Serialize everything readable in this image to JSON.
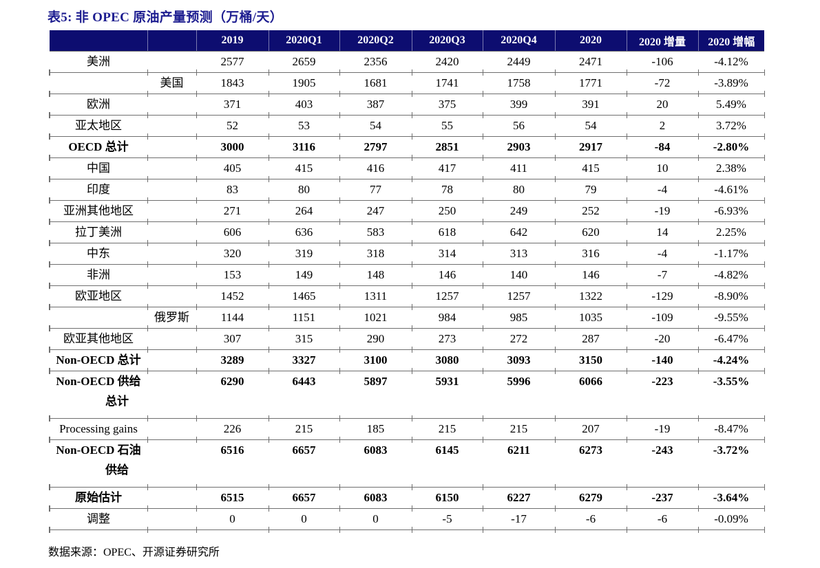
{
  "title": "表5: 非 OPEC 原油产量预测（万桶/天）",
  "source": "数据来源：OPEC、开源证券研究所",
  "colors": {
    "header_bg": "#0d0d70",
    "header_text": "#ffffff",
    "title_text": "#1d1d90",
    "line": "#6e6e6e",
    "body_text": "#000000"
  },
  "table": {
    "columns": [
      "2019",
      "2020Q1",
      "2020Q2",
      "2020Q3",
      "2020Q4",
      "2020",
      "2020 增量",
      "2020 增幅"
    ],
    "rows": [
      {
        "label": "美洲",
        "sub": "",
        "bold": false,
        "values": [
          "2577",
          "2659",
          "2356",
          "2420",
          "2449",
          "2471",
          "-106",
          "-4.12%"
        ]
      },
      {
        "label": "",
        "sub": "美国",
        "bold": false,
        "values": [
          "1843",
          "1905",
          "1681",
          "1741",
          "1758",
          "1771",
          "-72",
          "-3.89%"
        ]
      },
      {
        "label": "欧洲",
        "sub": "",
        "bold": false,
        "values": [
          "371",
          "403",
          "387",
          "375",
          "399",
          "391",
          "20",
          "5.49%"
        ]
      },
      {
        "label": "亚太地区",
        "sub": "",
        "bold": false,
        "values": [
          "52",
          "53",
          "54",
          "55",
          "56",
          "54",
          "2",
          "3.72%"
        ]
      },
      {
        "label": "OECD 总计",
        "sub": "",
        "bold": true,
        "values": [
          "3000",
          "3116",
          "2797",
          "2851",
          "2903",
          "2917",
          "-84",
          "-2.80%"
        ]
      },
      {
        "label": "中国",
        "sub": "",
        "bold": false,
        "values": [
          "405",
          "415",
          "416",
          "417",
          "411",
          "415",
          "10",
          "2.38%"
        ]
      },
      {
        "label": "印度",
        "sub": "",
        "bold": false,
        "values": [
          "83",
          "80",
          "77",
          "78",
          "80",
          "79",
          "-4",
          "-4.61%"
        ]
      },
      {
        "label": "亚洲其他地区",
        "sub": "",
        "bold": false,
        "values": [
          "271",
          "264",
          "247",
          "250",
          "249",
          "252",
          "-19",
          "-6.93%"
        ]
      },
      {
        "label": "拉丁美洲",
        "sub": "",
        "bold": false,
        "values": [
          "606",
          "636",
          "583",
          "618",
          "642",
          "620",
          "14",
          "2.25%"
        ]
      },
      {
        "label": "中东",
        "sub": "",
        "bold": false,
        "values": [
          "320",
          "319",
          "318",
          "314",
          "313",
          "316",
          "-4",
          "-1.17%"
        ]
      },
      {
        "label": "非洲",
        "sub": "",
        "bold": false,
        "values": [
          "153",
          "149",
          "148",
          "146",
          "140",
          "146",
          "-7",
          "-4.82%"
        ]
      },
      {
        "label": "欧亚地区",
        "sub": "",
        "bold": false,
        "values": [
          "1452",
          "1465",
          "1311",
          "1257",
          "1257",
          "1322",
          "-129",
          "-8.90%"
        ]
      },
      {
        "label": "",
        "sub": "俄罗斯",
        "bold": false,
        "values": [
          "1144",
          "1151",
          "1021",
          "984",
          "985",
          "1035",
          "-109",
          "-9.55%"
        ]
      },
      {
        "label": "欧亚其他地区",
        "sub": "",
        "bold": false,
        "values": [
          "307",
          "315",
          "290",
          "273",
          "272",
          "287",
          "-20",
          "-6.47%"
        ]
      },
      {
        "label": "Non-OECD 总计",
        "sub": "",
        "bold": true,
        "values": [
          "3289",
          "3327",
          "3100",
          "3080",
          "3093",
          "3150",
          "-140",
          "-4.24%"
        ]
      },
      {
        "label": "Non-OECD 供给",
        "label2": "总计",
        "sub": "",
        "bold": true,
        "values": [
          "6290",
          "6443",
          "5897",
          "5931",
          "5996",
          "6066",
          "-223",
          "-3.55%"
        ]
      },
      {
        "label": "Processing gains",
        "sub": "",
        "bold": false,
        "values": [
          "226",
          "215",
          "185",
          "215",
          "215",
          "207",
          "-19",
          "-8.47%"
        ]
      },
      {
        "label": "Non-OECD 石油",
        "label2": "供给",
        "sub": "",
        "bold": true,
        "values": [
          "6516",
          "6657",
          "6083",
          "6145",
          "6211",
          "6273",
          "-243",
          "-3.72%"
        ]
      },
      {
        "label": "原始估计",
        "sub": "",
        "bold": true,
        "values": [
          "6515",
          "6657",
          "6083",
          "6150",
          "6227",
          "6279",
          "-237",
          "-3.64%"
        ]
      },
      {
        "label": "调整",
        "sub": "",
        "bold": false,
        "values": [
          "0",
          "0",
          "0",
          "-5",
          "-17",
          "-6",
          "-6",
          "-0.09%"
        ]
      }
    ]
  }
}
